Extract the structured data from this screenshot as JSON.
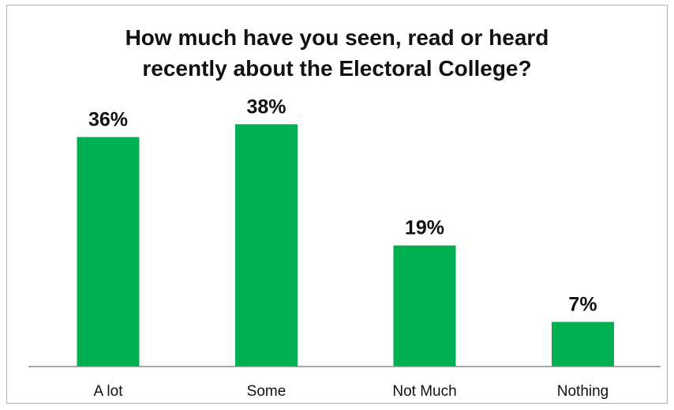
{
  "chart_data": {
    "type": "bar",
    "title_lines": [
      "How much have you seen, read or heard",
      "recently about the Electoral College?"
    ],
    "categories": [
      "A lot",
      "Some",
      "Not Much",
      "Nothing"
    ],
    "values": [
      36,
      38,
      19,
      7
    ],
    "data_labels": [
      "36%",
      "38%",
      "19%",
      "7%"
    ],
    "bar_color": "#00b050",
    "axis_color": "#8c8c8c",
    "ylim": [
      0,
      45
    ],
    "grid": false,
    "legend": "none"
  }
}
